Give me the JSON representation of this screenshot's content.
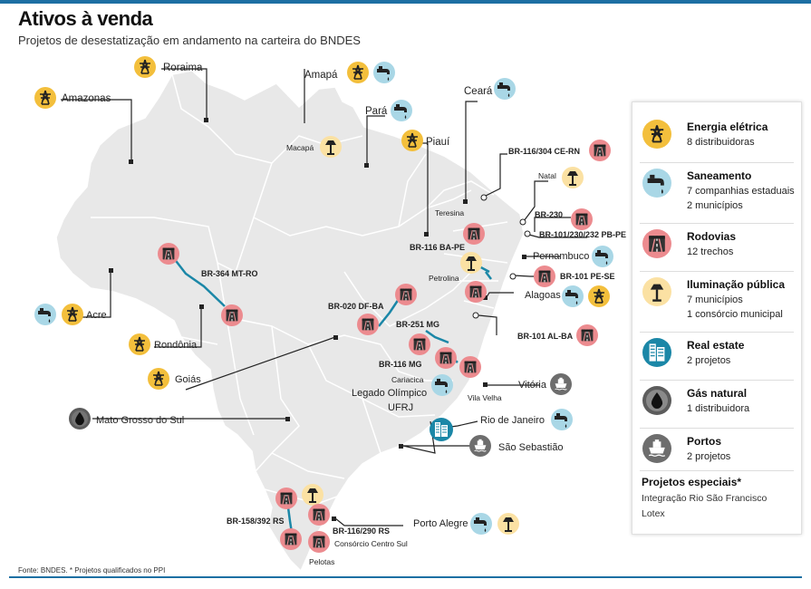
{
  "header": {
    "title": "Ativos à venda",
    "subtitle": "Projetos de desestatização em andamento na carteira do BNDES"
  },
  "source": "Fonte: BNDES. * Projetos qualificados no PPI",
  "colors": {
    "energy": "#f3bf3c",
    "sanitation": "#a9d7e6",
    "roads": "#ec8b8f",
    "lighting": "#fbe1a3",
    "real_estate": "#1b87a7",
    "gas": "#5c5c5c",
    "ports": "#6d6d6d",
    "map_fill": "#e8e8e8",
    "border": "#ffffff",
    "route": "#1b87a7",
    "accent": "#1d6fa3"
  },
  "map": {
    "labels": {
      "roraima": "Roraima",
      "amazonas": "Amazonas",
      "amapa": "Amapá",
      "para": "Pará",
      "macapa": "Macapá",
      "ceara": "Ceará",
      "piaui": "Piauí",
      "br116_304": "BR-116/304 CE-RN",
      "natal": "Natal",
      "teresina": "Teresina",
      "br230": "BR-230",
      "br101_230": "BR-101/230/232 PB-PE",
      "br116_bape": "BR-116 BA-PE",
      "pernambuco": "Pernambuco",
      "petrolina": "Petrolina",
      "br101_pese": "BR-101 PE-SE",
      "alagoas": "Alagoas",
      "br364": "BR-364 MT-RO",
      "br020": "BR-020 DF-BA",
      "br251": "BR-251 MG",
      "br101_alba": "BR-101 AL-BA",
      "acre": "Acre",
      "rondonia": "Rondônia",
      "br116_mg": "BR-116 MG",
      "goias": "Goiás",
      "cariacica": "Cariacica",
      "vitoria": "Vitória",
      "vila_velha": "Vila Velha",
      "legado": "Legado Olímpico",
      "ufrj": "UFRJ",
      "mato_grosso_sul": "Mato Grosso do Sul",
      "rio": "Rio de Janeiro",
      "sao_sebastiao": "São Sebastião",
      "br158_392": "BR-158/392 RS",
      "br116_290": "BR-116/290 RS",
      "porto_alegre": "Porto Alegre",
      "consorcio": "Consórcio Centro Sul",
      "pelotas": "Pelotas"
    }
  },
  "legend": {
    "items": [
      {
        "title": "Energia elétrica",
        "line1": "8 distribuidoras",
        "line2": "",
        "icon": "power-tower-icon"
      },
      {
        "title": "Saneamento",
        "line1": "7 companhias estaduais",
        "line2": "2 municípios",
        "icon": "water-faucet-icon"
      },
      {
        "title": "Rodovias",
        "line1": "12 trechos",
        "line2": "",
        "icon": "road-icon"
      },
      {
        "title": "Iluminação pública",
        "line1": "7 municípios",
        "line2": "1 consórcio municipal",
        "icon": "street-lamp-icon"
      },
      {
        "title": "Real estate",
        "line1": "2 projetos",
        "line2": "",
        "icon": "building-icon"
      },
      {
        "title": "Gás natural",
        "line1": "1 distribuidora",
        "line2": "",
        "icon": "gas-drop-icon"
      },
      {
        "title": "Portos",
        "line1": "2 projetos",
        "line2": "",
        "icon": "ship-icon"
      }
    ],
    "special_title": "Projetos especiais*",
    "special_1": "Integração Rio São Francisco",
    "special_2": "Lotex"
  }
}
